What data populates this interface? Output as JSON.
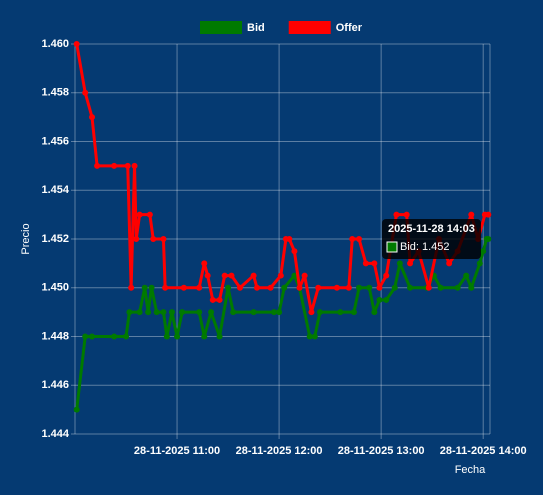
{
  "chart_data": {
    "type": "line",
    "x_label": "Fecha",
    "y_label": "Precio",
    "xlim": [
      "2025-11-28 10:00",
      "2025-11-28 14:04"
    ],
    "xticks": [
      {
        "value": "2025-11-28 11:00",
        "label": "28-11-2025 11:00"
      },
      {
        "value": "2025-11-28 12:00",
        "label": "28-11-2025 12:00"
      },
      {
        "value": "2025-11-28 13:00",
        "label": "28-11-2025 13:00"
      },
      {
        "value": "2025-11-28 14:00",
        "label": "28-11-2025 14:00"
      }
    ],
    "ylim": [
      1.444,
      1.46
    ],
    "yticks": [
      1.444,
      1.446,
      1.448,
      {
        "value": 1.45,
        "label": "1.450"
      },
      1.452,
      1.454,
      1.456,
      1.458,
      {
        "value": 1.46,
        "label": "1.460"
      }
    ],
    "grid": true,
    "legend": "top",
    "tooltip": {
      "title": "2025-11-28 14:03",
      "label": "Bid: 1.452"
    },
    "series": [
      {
        "name": "Bid",
        "color": "#007a00",
        "x": [
          "2025-11-28 10:01",
          "2025-11-28 10:06",
          "2025-11-28 10:10",
          "2025-11-28 10:23",
          "2025-11-28 10:30",
          "2025-11-28 10:32",
          "2025-11-28 10:38",
          "2025-11-28 10:41",
          "2025-11-28 10:43",
          "2025-11-28 10:45",
          "2025-11-28 10:48",
          "2025-11-28 10:52",
          "2025-11-28 10:54",
          "2025-11-28 10:57",
          "2025-11-28 11:00",
          "2025-11-28 11:03",
          "2025-11-28 11:13",
          "2025-11-28 11:16",
          "2025-11-28 11:20",
          "2025-11-28 11:25",
          "2025-11-28 11:30",
          "2025-11-28 11:33",
          "2025-11-28 11:45",
          "2025-11-28 11:57",
          "2025-11-28 12:00",
          "2025-11-28 12:03",
          "2025-11-28 12:09",
          "2025-11-28 12:12",
          "2025-11-28 12:18",
          "2025-11-28 12:21",
          "2025-11-28 12:24",
          "2025-11-28 12:36",
          "2025-11-28 12:44",
          "2025-11-28 12:47",
          "2025-11-28 12:53",
          "2025-11-28 12:56",
          "2025-11-28 12:59",
          "2025-11-28 13:03",
          "2025-11-28 13:08",
          "2025-11-28 13:11",
          "2025-11-28 13:17",
          "2025-11-28 13:27",
          "2025-11-28 13:31",
          "2025-11-28 13:35",
          "2025-11-28 13:45",
          "2025-11-28 13:50",
          "2025-11-28 13:53",
          "2025-11-28 13:58",
          "2025-11-28 14:00",
          "2025-11-28 14:02",
          "2025-11-28 14:03"
        ],
        "values": [
          1.445,
          1.448,
          1.448,
          1.448,
          1.448,
          1.449,
          1.449,
          1.45,
          1.449,
          1.45,
          1.449,
          1.449,
          1.448,
          1.449,
          1.448,
          1.449,
          1.449,
          1.448,
          1.449,
          1.448,
          1.45,
          1.449,
          1.449,
          1.449,
          1.449,
          1.45,
          1.4505,
          1.45,
          1.448,
          1.448,
          1.449,
          1.449,
          1.449,
          1.45,
          1.45,
          1.449,
          1.4495,
          1.4495,
          1.45,
          1.451,
          1.45,
          1.45,
          1.4505,
          1.45,
          1.45,
          1.4505,
          1.45,
          1.451,
          1.4515,
          1.452,
          1.452
        ]
      },
      {
        "name": "Offer",
        "color": "#ff0000",
        "x": [
          "2025-11-28 10:01",
          "2025-11-28 10:06",
          "2025-11-28 10:10",
          "2025-11-28 10:13",
          "2025-11-28 10:23",
          "2025-11-28 10:31",
          "2025-11-28 10:33",
          "2025-11-28 10:35",
          "2025-11-28 10:36",
          "2025-11-28 10:38",
          "2025-11-28 10:44",
          "2025-11-28 10:46",
          "2025-11-28 10:52",
          "2025-11-28 10:53",
          "2025-11-28 11:04",
          "2025-11-28 11:13",
          "2025-11-28 11:16",
          "2025-11-28 11:18",
          "2025-11-28 11:21",
          "2025-11-28 11:25",
          "2025-11-28 11:28",
          "2025-11-28 11:32",
          "2025-11-28 11:37",
          "2025-11-28 11:45",
          "2025-11-28 11:47",
          "2025-11-28 11:55",
          "2025-11-28 12:01",
          "2025-11-28 12:04",
          "2025-11-28 12:06",
          "2025-11-28 12:09",
          "2025-11-28 12:12",
          "2025-11-28 12:15",
          "2025-11-28 12:19",
          "2025-11-28 12:23",
          "2025-11-28 12:34",
          "2025-11-28 12:41",
          "2025-11-28 12:43",
          "2025-11-28 12:47",
          "2025-11-28 12:51",
          "2025-11-28 12:56",
          "2025-11-28 12:59",
          "2025-11-28 13:03",
          "2025-11-28 13:09",
          "2025-11-28 13:15",
          "2025-11-28 13:17",
          "2025-11-28 13:22",
          "2025-11-28 13:28",
          "2025-11-28 13:34",
          "2025-11-28 13:40",
          "2025-11-28 13:45",
          "2025-11-28 13:53",
          "2025-11-28 13:57",
          "2025-11-28 14:01",
          "2025-11-28 14:03"
        ],
        "values": [
          1.46,
          1.458,
          1.457,
          1.455,
          1.455,
          1.455,
          1.45,
          1.455,
          1.452,
          1.453,
          1.453,
          1.452,
          1.452,
          1.45,
          1.45,
          1.45,
          1.451,
          1.4505,
          1.4495,
          1.4495,
          1.4505,
          1.4505,
          1.45,
          1.4505,
          1.45,
          1.45,
          1.4505,
          1.452,
          1.452,
          1.4515,
          1.45,
          1.4505,
          1.449,
          1.45,
          1.45,
          1.45,
          1.452,
          1.452,
          1.451,
          1.451,
          1.45,
          1.4505,
          1.453,
          1.453,
          1.451,
          1.4515,
          1.45,
          1.452,
          1.451,
          1.4515,
          1.453,
          1.452,
          1.453,
          1.453
        ]
      }
    ]
  }
}
